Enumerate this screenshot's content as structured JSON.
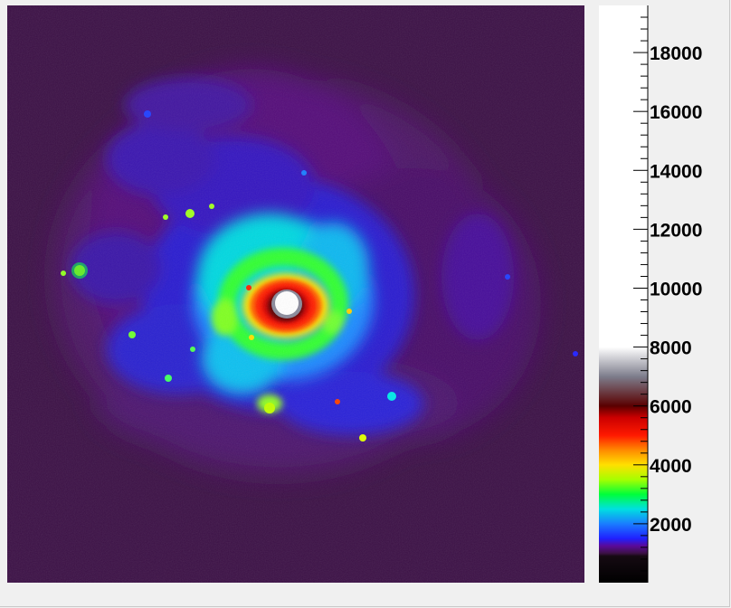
{
  "image": {
    "subject": "spiral galaxy false-color intensity map",
    "background_color": "#3c1146"
  },
  "colorbar": {
    "min": 0,
    "max": 19600,
    "tick_labels": [
      "2000",
      "4000",
      "6000",
      "8000",
      "10000",
      "12000",
      "14000",
      "16000",
      "18000"
    ],
    "tick_values": [
      2000,
      4000,
      6000,
      8000,
      10000,
      12000,
      14000,
      16000,
      18000
    ],
    "minor_step": 400,
    "palette": [
      {
        "value": 0,
        "color": "#000000"
      },
      {
        "value": 900,
        "color": "#150a12"
      },
      {
        "value": 1000,
        "color": "#3c1146"
      },
      {
        "value": 1250,
        "color": "#5a0a9a"
      },
      {
        "value": 1500,
        "color": "#2020ff"
      },
      {
        "value": 2000,
        "color": "#1a7dff"
      },
      {
        "value": 2500,
        "color": "#00e0e0"
      },
      {
        "value": 3000,
        "color": "#00ff3a"
      },
      {
        "value": 3500,
        "color": "#a6ff00"
      },
      {
        "value": 4000,
        "color": "#ffe000"
      },
      {
        "value": 4500,
        "color": "#ff8a00"
      },
      {
        "value": 5000,
        "color": "#ff1a00"
      },
      {
        "value": 5600,
        "color": "#cc0000"
      },
      {
        "value": 6000,
        "color": "#5a0000"
      },
      {
        "value": 7000,
        "color": "#7d7d8c"
      },
      {
        "value": 8000,
        "color": "#ffffff"
      },
      {
        "value": 19600,
        "color": "#ffffff"
      }
    ]
  }
}
